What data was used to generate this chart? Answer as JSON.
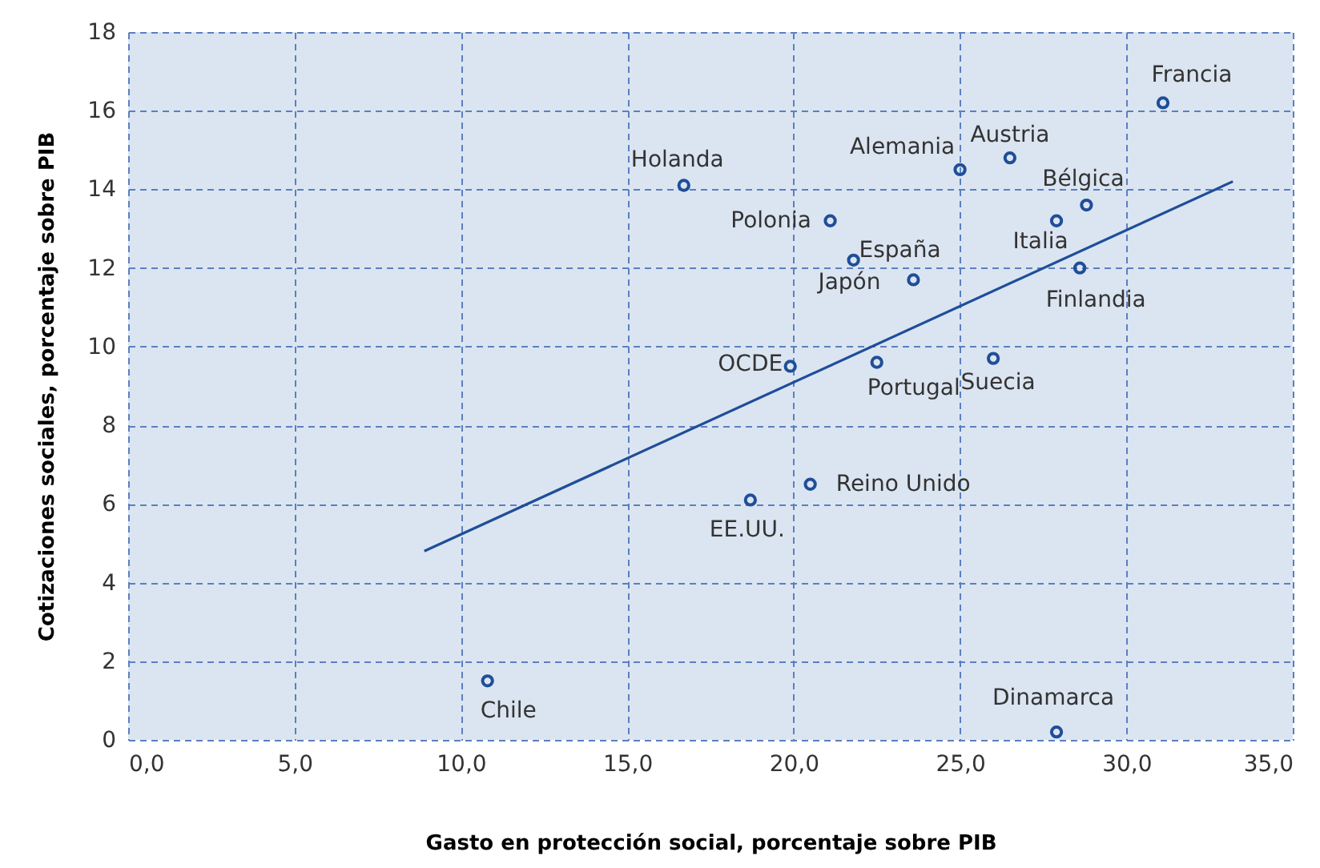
{
  "chart_data": {
    "type": "scatter",
    "xlabel": "Gasto en protección social, porcentaje sobre PIB",
    "ylabel": "Cotizaciones sociales, porcentaje sobre PIB",
    "xlim": [
      0,
      35
    ],
    "ylim": [
      0,
      18
    ],
    "xticks": [
      {
        "value": 0,
        "label": "0,0"
      },
      {
        "value": 5,
        "label": "5,0"
      },
      {
        "value": 10,
        "label": "10,0"
      },
      {
        "value": 15,
        "label": "15,0"
      },
      {
        "value": 20,
        "label": "20,0"
      },
      {
        "value": 25,
        "label": "25,0"
      },
      {
        "value": 30,
        "label": "30,0"
      },
      {
        "value": 35,
        "label": "35,0"
      }
    ],
    "yticks": [
      0,
      2,
      4,
      6,
      8,
      10,
      12,
      14,
      16,
      18
    ],
    "grid": true,
    "series": [
      {
        "color": "#1f4e99",
        "marker": "circle",
        "x": [
          31.1,
          26.5,
          25.0,
          28.8,
          16.7,
          21.1,
          27.9,
          21.8,
          28.6,
          23.6,
          19.9,
          22.5,
          26.0,
          20.5,
          18.7,
          10.8,
          27.9
        ],
        "values": [
          16.2,
          14.8,
          14.5,
          13.6,
          14.1,
          13.2,
          13.2,
          12.2,
          12.0,
          11.7,
          9.5,
          9.6,
          9.7,
          6.5,
          6.1,
          1.5,
          0.2
        ]
      },
      {
        "type": "line",
        "line_style": "solid",
        "color": "#1f4e99",
        "x": [
          8.9,
          33.2
        ],
        "values": [
          4.8,
          14.2
        ]
      }
    ],
    "annotations": [
      {
        "text": "Francia",
        "x": 31.1,
        "y": 16.2
      },
      {
        "text": "Austria",
        "x": 26.5,
        "y": 14.8
      },
      {
        "text": "Alemania",
        "x": 25.0,
        "y": 14.5
      },
      {
        "text": "Bélgica",
        "x": 28.8,
        "y": 13.6
      },
      {
        "text": "Holanda",
        "x": 16.7,
        "y": 14.1
      },
      {
        "text": "Polonia",
        "x": 21.1,
        "y": 13.2
      },
      {
        "text": "Italia",
        "x": 27.9,
        "y": 13.2
      },
      {
        "text": "España",
        "x": 21.8,
        "y": 12.2
      },
      {
        "text": "Finlandia",
        "x": 28.6,
        "y": 12.0
      },
      {
        "text": "Japón",
        "x": 23.6,
        "y": 11.7
      },
      {
        "text": "OCDE",
        "x": 19.9,
        "y": 9.5
      },
      {
        "text": "Portugal",
        "x": 22.5,
        "y": 9.6
      },
      {
        "text": "Suecia",
        "x": 26.0,
        "y": 9.7
      },
      {
        "text": "Reino Unido",
        "x": 20.5,
        "y": 6.5
      },
      {
        "text": "EE.UU.",
        "x": 18.7,
        "y": 6.1
      },
      {
        "text": "Chile",
        "x": 10.8,
        "y": 1.5
      },
      {
        "text": "Dinamarca",
        "x": 27.9,
        "y": 0.2
      }
    ]
  }
}
